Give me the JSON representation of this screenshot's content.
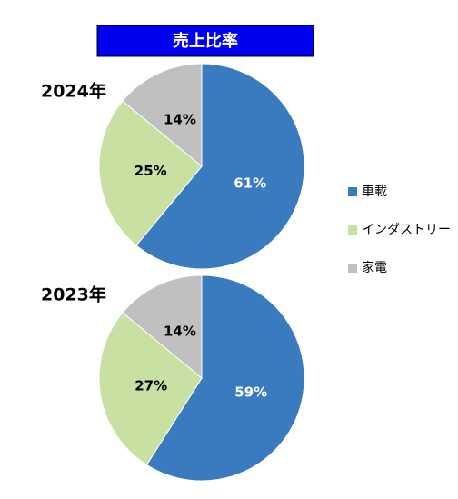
{
  "title": "売上比率",
  "chart_data": [
    {
      "type": "pie",
      "title": "2024年",
      "categories": [
        "車載",
        "インダストリー",
        "家電"
      ],
      "values": [
        61,
        25,
        14
      ],
      "value_labels": [
        "61%",
        "25%",
        "14%"
      ],
      "colors": [
        "#3a7bbf",
        "#c8e0a2",
        "#c0c0c0"
      ],
      "label_colors": [
        "#ffffff",
        "#000000",
        "#000000"
      ]
    },
    {
      "type": "pie",
      "title": "2023年",
      "categories": [
        "車載",
        "インダストリー",
        "家電"
      ],
      "values": [
        59,
        27,
        14
      ],
      "value_labels": [
        "59%",
        "27%",
        "14%"
      ],
      "colors": [
        "#3a7bbf",
        "#c8e0a2",
        "#c0c0c0"
      ],
      "label_colors": [
        "#ffffff",
        "#000000",
        "#000000"
      ]
    }
  ]
}
